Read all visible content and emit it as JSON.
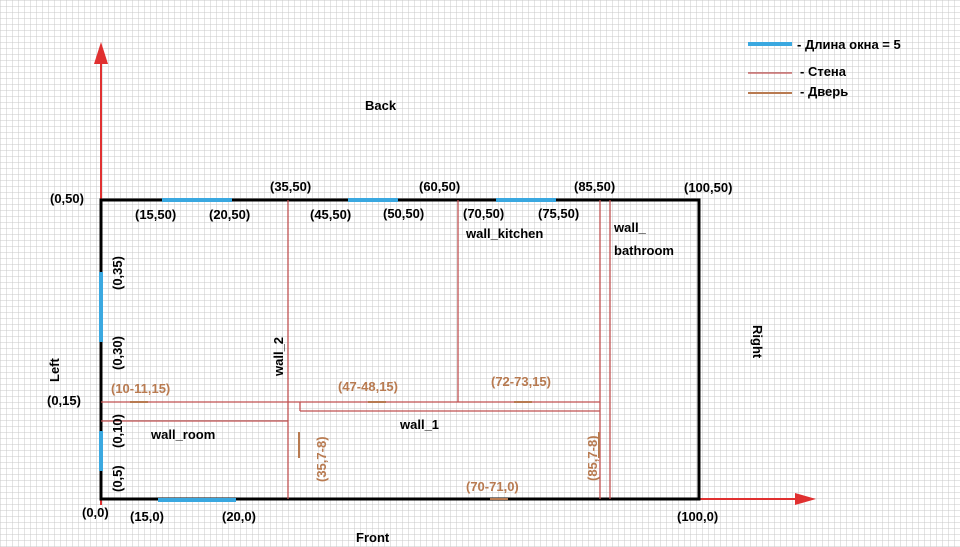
{
  "colors": {
    "grid": "#c9c9c9",
    "outline": "#000000",
    "wall": "#c05050",
    "door": "#b87a50",
    "window": "#3aa8e0",
    "axis": "#e03030"
  },
  "legend": {
    "window_label": "- Длина окна = 5",
    "wall_label": "- Стена",
    "door_label": "- Дверь"
  },
  "sides": {
    "back": "Back",
    "front": "Front",
    "left": "Left",
    "right": "Right"
  },
  "corner_labels": {
    "origin": "(0,0)",
    "top_left": "(0,50)",
    "top_right": "(100,50)",
    "bottom_right": "(100,0)",
    "left_mid": "(0,15)"
  },
  "top_labels": [
    "(15,50)",
    "(20,50)",
    "(35,50)",
    "(45,50)",
    "(50,50)",
    "(60,50)",
    "(70,50)",
    "(75,50)",
    "(85,50)"
  ],
  "bottom_labels": [
    "(15,0)",
    "(20,0)"
  ],
  "left_vertical_labels": [
    "(0,35)",
    "(0,30)",
    "(0,10)",
    "(0,5)"
  ],
  "wall_names": {
    "wall_2": "wall_2",
    "wall_kitchen": "wall_kitchen",
    "wall_bathroom_1": "wall_",
    "wall_bathroom_2": "bathroom",
    "wall_room": "wall_room",
    "wall_1": "wall_1"
  },
  "door_labels": {
    "d1": "(10-11,15)",
    "d2": "(47-48,15)",
    "d3": "(72-73,15)",
    "d4": "(35,7-8)",
    "d5": "(85,7-8)",
    "d6": "(70-71,0)"
  }
}
